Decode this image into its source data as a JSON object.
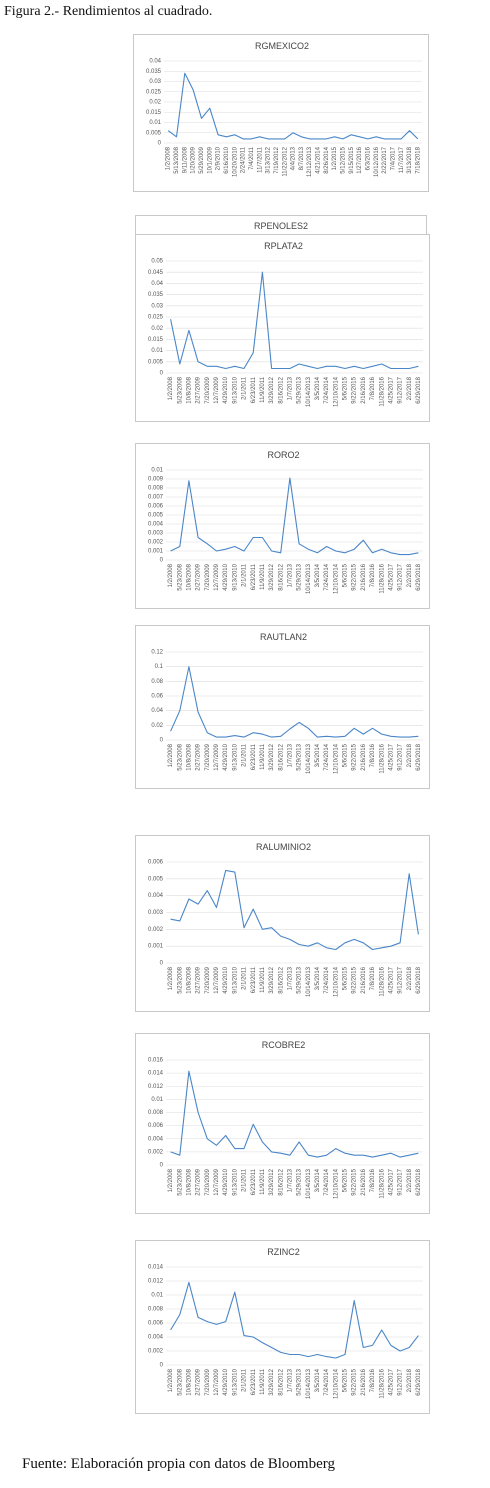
{
  "header": {
    "title": "Figura 2.- Rendimientos al cuadrado."
  },
  "extra_panel": {
    "title": "RPENOLES2"
  },
  "chart_data": [
    {
      "type": "line",
      "title": "RGMEXICO2",
      "color": "#4a86c8",
      "grid": true,
      "categories": [
        "1/2/2008",
        "5/13/2008",
        "9/11/2008",
        "1/20/2009",
        "5/29/2009",
        "10/1/2009",
        "2/9/2010",
        "6/16/2010",
        "10/20/2010",
        "2/24/2011",
        "7/4/2011",
        "11/7/2011",
        "3/13/2012",
        "7/19/2012",
        "11/22/2012",
        "4/4/2013",
        "8/7/2013",
        "12/12/2013",
        "4/21/2014",
        "8/26/2014",
        "1/2/2015",
        "5/12/2015",
        "9/15/2015",
        "1/27/2016",
        "6/3/2016",
        "10/12/2016",
        "2/22/2017",
        "7/4/2017",
        "11/7/2017",
        "3/13/2018",
        "7/18/2018"
      ],
      "values": [
        0.006,
        0.003,
        0.034,
        0.026,
        0.012,
        0.017,
        0.004,
        0.003,
        0.004,
        0.002,
        0.002,
        0.003,
        0.002,
        0.002,
        0.002,
        0.005,
        0.003,
        0.002,
        0.002,
        0.002,
        0.003,
        0.002,
        0.004,
        0.003,
        0.002,
        0.003,
        0.002,
        0.002,
        0.002,
        0.006,
        0.002
      ],
      "ylim": [
        0,
        0.04
      ],
      "yticks": [
        0,
        0.005,
        0.01,
        0.015,
        0.02,
        0.025,
        0.03,
        0.035,
        0.04
      ]
    },
    {
      "type": "line",
      "title": "RPLATA2",
      "color": "#4a86c8",
      "grid": true,
      "categories": [
        "1/2/2008",
        "5/23/2008",
        "10/8/2008",
        "2/27/2009",
        "7/20/2009",
        "12/7/2009",
        "4/29/2010",
        "9/13/2010",
        "2/1/2011",
        "6/23/2011",
        "11/9/2011",
        "3/29/2012",
        "8/16/2012",
        "1/7/2013",
        "5/29/2013",
        "10/14/2013",
        "3/5/2014",
        "7/24/2014",
        "12/10/2014",
        "5/6/2015",
        "9/22/2015",
        "2/16/2016",
        "7/8/2016",
        "11/28/2016",
        "4/25/2017",
        "9/12/2017",
        "2/2/2018",
        "6/29/2018"
      ],
      "values": [
        0.024,
        0.004,
        0.019,
        0.005,
        0.003,
        0.003,
        0.002,
        0.003,
        0.002,
        0.009,
        0.045,
        0.002,
        0.002,
        0.002,
        0.004,
        0.003,
        0.002,
        0.003,
        0.003,
        0.002,
        0.003,
        0.002,
        0.003,
        0.004,
        0.002,
        0.002,
        0.002,
        0.003
      ],
      "ylim": [
        0,
        0.05
      ],
      "yticks": [
        0,
        0.005,
        0.01,
        0.015,
        0.02,
        0.025,
        0.03,
        0.035,
        0.04,
        0.045,
        0.05
      ]
    },
    {
      "type": "line",
      "title": "RORO2",
      "color": "#4a86c8",
      "grid": true,
      "categories": [
        "1/2/2008",
        "5/23/2008",
        "10/8/2008",
        "2/27/2009",
        "7/20/2009",
        "12/7/2009",
        "4/29/2010",
        "9/13/2010",
        "2/1/2011",
        "6/23/2011",
        "11/9/2011",
        "3/29/2012",
        "8/16/2012",
        "1/7/2013",
        "5/29/2013",
        "10/14/2013",
        "3/5/2014",
        "7/24/2014",
        "12/10/2014",
        "5/6/2015",
        "9/22/2015",
        "2/16/2016",
        "7/8/2016",
        "11/28/2016",
        "4/25/2017",
        "9/12/2017",
        "2/2/2018",
        "6/29/2018"
      ],
      "values": [
        0.001,
        0.0015,
        0.0088,
        0.0025,
        0.0018,
        0.001,
        0.0012,
        0.0015,
        0.001,
        0.0025,
        0.0025,
        0.001,
        0.0008,
        0.0091,
        0.0018,
        0.0012,
        0.0008,
        0.0015,
        0.001,
        0.0008,
        0.0012,
        0.0022,
        0.0008,
        0.0012,
        0.0008,
        0.0006,
        0.0006,
        0.0008
      ],
      "ylim": [
        0,
        0.01
      ],
      "yticks": [
        0,
        0.001,
        0.002,
        0.003,
        0.004,
        0.005,
        0.006,
        0.007,
        0.008,
        0.009,
        0.01
      ]
    },
    {
      "type": "line",
      "title": "RAUTLAN2",
      "color": "#4a86c8",
      "grid": true,
      "categories": [
        "1/2/2008",
        "5/23/2008",
        "10/8/2008",
        "2/27/2009",
        "7/20/2009",
        "12/7/2009",
        "4/29/2010",
        "9/13/2010",
        "2/1/2011",
        "6/23/2011",
        "11/9/2011",
        "3/29/2012",
        "8/16/2012",
        "1/7/2013",
        "5/29/2013",
        "10/14/2013",
        "3/5/2014",
        "7/24/2014",
        "12/10/2014",
        "5/6/2015",
        "9/22/2015",
        "2/16/2016",
        "7/8/2016",
        "11/28/2016",
        "4/25/2017",
        "9/12/2017",
        "2/2/2018",
        "6/29/2018"
      ],
      "values": [
        0.012,
        0.04,
        0.1,
        0.038,
        0.01,
        0.004,
        0.004,
        0.006,
        0.004,
        0.01,
        0.008,
        0.004,
        0.005,
        0.015,
        0.024,
        0.016,
        0.004,
        0.005,
        0.004,
        0.005,
        0.016,
        0.008,
        0.016,
        0.008,
        0.005,
        0.004,
        0.004,
        0.005
      ],
      "ylim": [
        0,
        0.12
      ],
      "yticks": [
        0,
        0.02,
        0.04,
        0.06,
        0.08,
        0.1,
        0.12
      ]
    },
    {
      "type": "line",
      "title": "RALUMINIO2",
      "color": "#4a86c8",
      "grid": true,
      "categories": [
        "1/2/2008",
        "5/23/2008",
        "10/8/2008",
        "2/27/2009",
        "7/20/2009",
        "12/7/2009",
        "4/29/2010",
        "9/13/2010",
        "2/1/2011",
        "6/23/2011",
        "11/9/2011",
        "3/29/2012",
        "8/16/2012",
        "1/7/2013",
        "5/29/2013",
        "10/14/2013",
        "3/5/2014",
        "7/24/2014",
        "12/10/2014",
        "5/6/2015",
        "9/22/2015",
        "2/16/2016",
        "7/8/2016",
        "11/28/2016",
        "4/25/2017",
        "9/12/2017",
        "2/2/2018",
        "6/29/2018"
      ],
      "values": [
        0.0026,
        0.0025,
        0.0038,
        0.0035,
        0.0043,
        0.0033,
        0.0055,
        0.0054,
        0.0021,
        0.0032,
        0.002,
        0.0021,
        0.0016,
        0.0014,
        0.0011,
        0.001,
        0.0012,
        0.0009,
        0.0008,
        0.0012,
        0.0014,
        0.0012,
        0.0008,
        0.0009,
        0.001,
        0.0012,
        0.0053,
        0.0017
      ],
      "ylim": [
        0,
        0.006
      ],
      "yticks": [
        0,
        0.001,
        0.002,
        0.003,
        0.004,
        0.005,
        0.006
      ]
    },
    {
      "type": "line",
      "title": "RCOBRE2",
      "color": "#4a86c8",
      "grid": true,
      "categories": [
        "1/2/2008",
        "5/23/2008",
        "10/8/2008",
        "2/27/2009",
        "7/20/2009",
        "12/7/2009",
        "4/29/2010",
        "9/13/2010",
        "2/1/2011",
        "6/23/2011",
        "11/9/2011",
        "3/29/2012",
        "8/16/2012",
        "1/7/2013",
        "5/29/2013",
        "10/14/2013",
        "3/5/2014",
        "7/24/2014",
        "12/10/2014",
        "5/6/2015",
        "9/22/2015",
        "2/16/2016",
        "7/8/2016",
        "11/28/2016",
        "4/25/2017",
        "9/12/2017",
        "2/2/2018",
        "6/29/2018"
      ],
      "values": [
        0.002,
        0.0015,
        0.0143,
        0.008,
        0.004,
        0.003,
        0.0045,
        0.0025,
        0.0025,
        0.0062,
        0.0035,
        0.002,
        0.0018,
        0.0015,
        0.0035,
        0.0015,
        0.0012,
        0.0015,
        0.0025,
        0.0018,
        0.0015,
        0.0015,
        0.0012,
        0.0015,
        0.0018,
        0.0012,
        0.0015,
        0.0018
      ],
      "ylim": [
        0,
        0.016
      ],
      "yticks": [
        0,
        0.002,
        0.004,
        0.006,
        0.008,
        0.01,
        0.012,
        0.014,
        0.016
      ]
    },
    {
      "type": "line",
      "title": "RZINC2",
      "color": "#4a86c8",
      "grid": true,
      "categories": [
        "1/2/2008",
        "5/23/2008",
        "10/8/2008",
        "2/27/2009",
        "7/20/2009",
        "12/7/2009",
        "4/29/2010",
        "9/13/2010",
        "2/1/2011",
        "6/23/2011",
        "11/9/2011",
        "3/29/2012",
        "8/16/2012",
        "1/7/2013",
        "5/29/2013",
        "10/14/2013",
        "3/5/2014",
        "7/24/2014",
        "12/10/2014",
        "5/6/2015",
        "9/22/2015",
        "2/16/2016",
        "7/8/2016",
        "11/28/2016",
        "4/25/2017",
        "9/12/2017",
        "2/2/2018",
        "6/29/2018"
      ],
      "values": [
        0.005,
        0.0072,
        0.0118,
        0.0068,
        0.0062,
        0.0058,
        0.0062,
        0.0104,
        0.0042,
        0.004,
        0.0032,
        0.0025,
        0.0018,
        0.0015,
        0.0015,
        0.0012,
        0.0015,
        0.0012,
        0.001,
        0.0015,
        0.0092,
        0.0025,
        0.0028,
        0.005,
        0.0028,
        0.002,
        0.0025,
        0.0042
      ],
      "ylim": [
        0,
        0.014
      ],
      "yticks": [
        0,
        0.002,
        0.004,
        0.006,
        0.008,
        0.01,
        0.012,
        0.014
      ]
    }
  ],
  "footer": "Fuente: Elaboración propia con datos de Bloomberg"
}
